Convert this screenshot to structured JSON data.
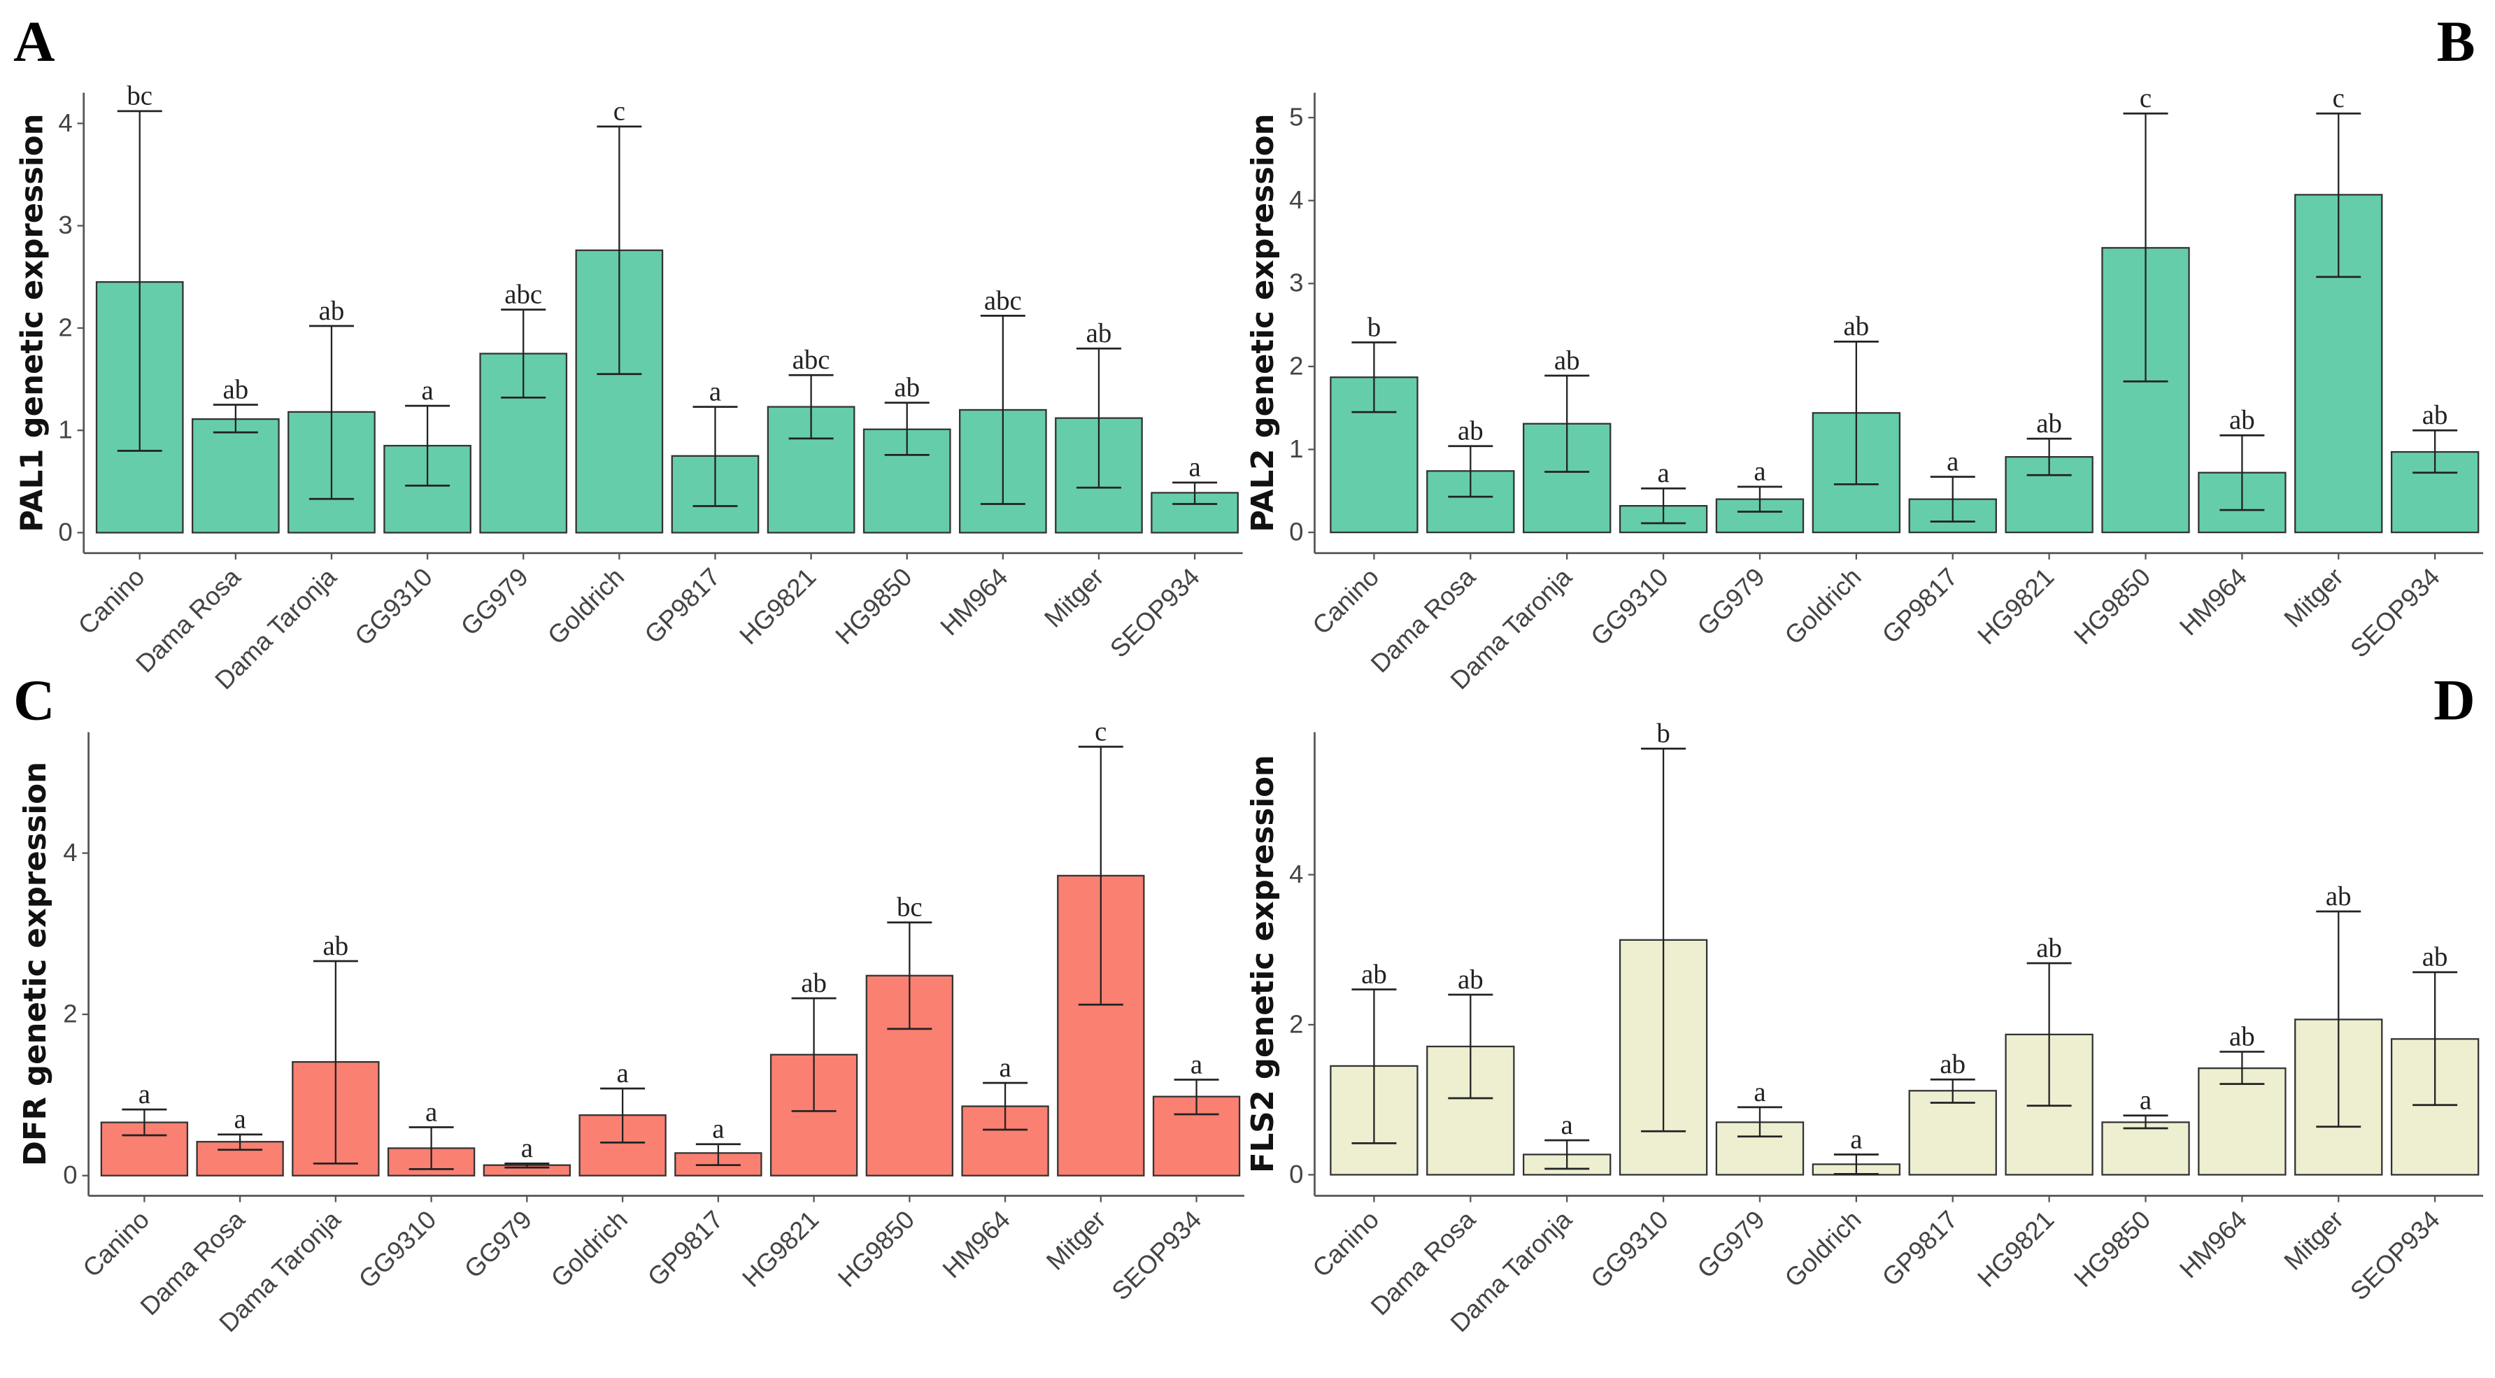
{
  "chart_data": [
    {
      "type": "bar",
      "panel": "A",
      "ylabel": "PAL1 genetic expression",
      "color": "#66CDAA",
      "yticks": [
        0,
        1,
        2,
        3,
        4
      ],
      "ylim": [
        -0.2,
        4.3
      ],
      "categories": [
        "Canino",
        "Dama Rosa",
        "Dama Taronja",
        "GG9310",
        "GG979",
        "Goldrich",
        "GP9817",
        "HG9821",
        "HG9850",
        "HM964",
        "Mitger",
        "SEOP934"
      ],
      "values": [
        2.45,
        1.11,
        1.18,
        0.85,
        1.75,
        2.76,
        0.75,
        1.23,
        1.01,
        1.2,
        1.12,
        0.39
      ],
      "err_low": [
        0.8,
        0.98,
        0.33,
        0.46,
        1.32,
        1.55,
        0.26,
        0.92,
        0.76,
        0.28,
        0.44,
        0.28
      ],
      "err_high": [
        4.12,
        1.25,
        2.02,
        1.24,
        2.18,
        3.97,
        1.23,
        1.54,
        1.27,
        2.12,
        1.8,
        0.49
      ],
      "letters": [
        "bc",
        "ab",
        "ab",
        "a",
        "abc",
        "c",
        "a",
        "abc",
        "ab",
        "abc",
        "ab",
        "a"
      ]
    },
    {
      "type": "bar",
      "panel": "B",
      "ylabel": "PAL2 genetic expression",
      "color": "#66CDAA",
      "yticks": [
        0,
        1,
        2,
        3,
        4,
        5
      ],
      "ylim": [
        -0.25,
        5.3
      ],
      "categories": [
        "Canino",
        "Dama Rosa",
        "Dama Taronja",
        "GG9310",
        "GG979",
        "Goldrich",
        "GP9817",
        "HG9821",
        "HG9850",
        "HM964",
        "Mitger",
        "SEOP934"
      ],
      "values": [
        1.87,
        0.74,
        1.31,
        0.32,
        0.4,
        1.44,
        0.4,
        0.91,
        3.43,
        0.72,
        4.07,
        0.97
      ],
      "err_low": [
        1.45,
        0.43,
        0.73,
        0.11,
        0.25,
        0.58,
        0.13,
        0.69,
        1.82,
        0.27,
        3.08,
        0.72
      ],
      "err_high": [
        2.29,
        1.04,
        1.89,
        0.53,
        0.55,
        2.3,
        0.67,
        1.13,
        5.05,
        1.17,
        5.05,
        1.23
      ],
      "letters": [
        "b",
        "ab",
        "ab",
        "a",
        "a",
        "ab",
        "a",
        "ab",
        "c",
        "ab",
        "c",
        "ab"
      ]
    },
    {
      "type": "bar",
      "panel": "C",
      "ylabel": "DFR genetic expression",
      "color": "#FA8072",
      "yticks": [
        0,
        2,
        4
      ],
      "ylim": [
        -0.25,
        5.5
      ],
      "categories": [
        "Canino",
        "Dama Rosa",
        "Dama Taronja",
        "GG9310",
        "GG979",
        "Goldrich",
        "GP9817",
        "HG9821",
        "HG9850",
        "HM964",
        "Mitger",
        "SEOP934"
      ],
      "values": [
        0.66,
        0.42,
        1.41,
        0.34,
        0.13,
        0.75,
        0.28,
        1.5,
        2.48,
        0.86,
        3.72,
        0.98
      ],
      "err_low": [
        0.5,
        0.32,
        0.15,
        0.08,
        0.1,
        0.41,
        0.13,
        0.8,
        1.82,
        0.57,
        2.12,
        0.76
      ],
      "err_high": [
        0.82,
        0.51,
        2.66,
        0.6,
        0.15,
        1.08,
        0.39,
        2.2,
        3.14,
        1.15,
        5.32,
        1.19
      ],
      "letters": [
        "a",
        "a",
        "ab",
        "a",
        "a",
        "a",
        "a",
        "ab",
        "bc",
        "a",
        "c",
        "a"
      ]
    },
    {
      "type": "bar",
      "panel": "D",
      "ylabel": "FLS2 genetic expression",
      "color": "#EEEED1",
      "yticks": [
        0,
        2,
        4
      ],
      "ylim": [
        -0.28,
        5.9
      ],
      "categories": [
        "Canino",
        "Dama Rosa",
        "Dama Taronja",
        "GG9310",
        "GG979",
        "Goldrich",
        "GP9817",
        "HG9821",
        "HG9850",
        "HM964",
        "Mitger",
        "SEOP934"
      ],
      "values": [
        1.45,
        1.71,
        0.27,
        3.13,
        0.7,
        0.14,
        1.12,
        1.87,
        0.7,
        1.42,
        2.07,
        1.81
      ],
      "err_low": [
        0.42,
        1.02,
        0.08,
        0.58,
        0.51,
        0.01,
        0.96,
        0.92,
        0.62,
        1.21,
        0.64,
        0.93
      ],
      "err_high": [
        2.47,
        2.4,
        0.46,
        5.68,
        0.9,
        0.27,
        1.27,
        2.82,
        0.79,
        1.64,
        3.51,
        2.7
      ],
      "letters": [
        "ab",
        "ab",
        "a",
        "b",
        "a",
        "a",
        "ab",
        "ab",
        "a",
        "ab",
        "ab",
        "ab"
      ]
    }
  ]
}
